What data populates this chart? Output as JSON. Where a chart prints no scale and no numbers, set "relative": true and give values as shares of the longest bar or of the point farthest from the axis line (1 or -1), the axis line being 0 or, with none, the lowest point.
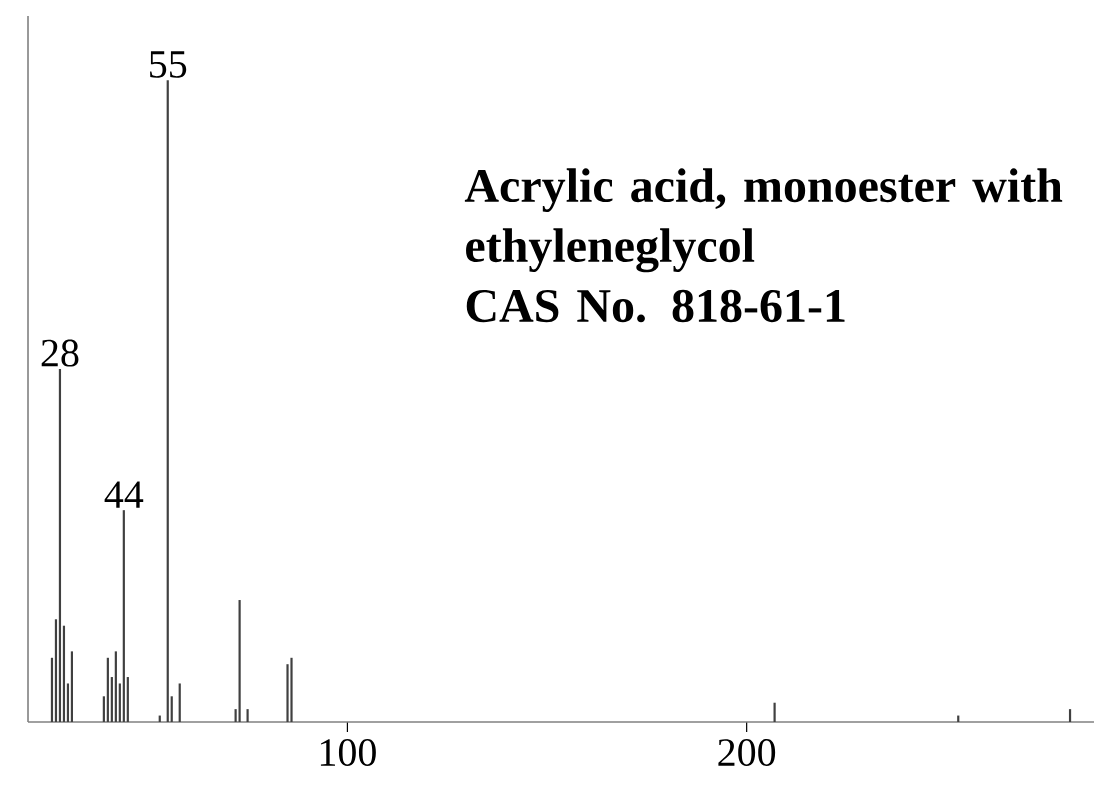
{
  "chart_data": {
    "type": "bar",
    "relative": true,
    "title": "Acrylic acid, monoester with ethyleneglycol",
    "subtitle": "CAS No. 818-61-1",
    "x": [
      26,
      27,
      28,
      29,
      30,
      31,
      39,
      40,
      41,
      42,
      43,
      44,
      45,
      53,
      55,
      56,
      58,
      72,
      73,
      75,
      85,
      86,
      207,
      253,
      281
    ],
    "values": [
      0.1,
      0.16,
      0.55,
      0.15,
      0.06,
      0.11,
      0.04,
      0.1,
      0.07,
      0.11,
      0.06,
      0.33,
      0.07,
      0.01,
      1,
      0.04,
      0.06,
      0.02,
      0.19,
      0.02,
      0.09,
      0.1,
      0.03,
      0.01,
      0.02
    ],
    "color": "#404040",
    "xlim": [
      20,
      287
    ],
    "xticks": [
      100,
      200
    ],
    "annotations": [
      {
        "text": "28",
        "x": 28,
        "y": 0.55
      },
      {
        "text": "44",
        "x": 44,
        "y": 0.33
      },
      {
        "text": "55",
        "x": 55,
        "y": 1
      }
    ]
  }
}
